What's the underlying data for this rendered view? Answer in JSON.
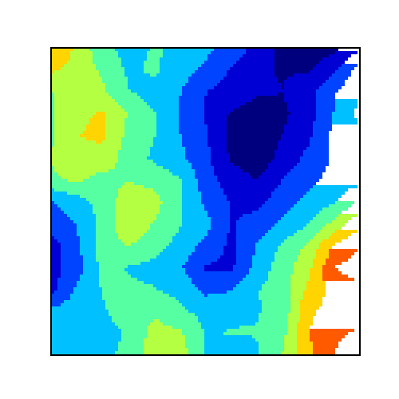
{
  "chart_data": {
    "type": "heatmap",
    "subtype": "filled-contour",
    "title": "",
    "xlabel": "",
    "ylabel": "",
    "ticks_visible": false,
    "grid": false,
    "legend": "none",
    "colormap": "jet",
    "levels": 8,
    "palette": [
      "#00007f",
      "#0000d4",
      "#0044ff",
      "#00c0ff",
      "#55ffa2",
      "#b4ff42",
      "#ffd400",
      "#ff5a00",
      "#c90000"
    ],
    "value_range": [
      0,
      8
    ],
    "z": [
      [
        6.2,
        5.2,
        3.8,
        3.3,
        3.6,
        3.5,
        2.9,
        2.3,
        1.5,
        0.6,
        0.4,
        0.6,
        1.6
      ],
      [
        5.5,
        5.0,
        4.3,
        3.4,
        3.7,
        3.1,
        2.5,
        1.7,
        1.1,
        0.8,
        0.8,
        1.6,
        3.1
      ],
      [
        4.4,
        4.7,
        4.6,
        3.6,
        3.2,
        2.7,
        1.8,
        1.4,
        1.0,
        0.9,
        1.5,
        2.6,
        3.5
      ],
      [
        4.3,
        5.2,
        5.4,
        4.4,
        3.6,
        2.6,
        1.7,
        0.8,
        0.5,
        0.7,
        1.4,
        2.7,
        3.8
      ],
      [
        4.3,
        5.3,
        5.5,
        4.2,
        3.6,
        2.7,
        1.9,
        0.6,
        0.3,
        0.9,
        1.6,
        2.9,
        3.3
      ],
      [
        4.5,
        5.0,
        5.1,
        4.0,
        3.4,
        2.9,
        2.0,
        0.8,
        0.2,
        1.2,
        2.0,
        2.8,
        3.2
      ],
      [
        4.3,
        4.6,
        4.1,
        4.4,
        4.1,
        3.6,
        2.2,
        1.3,
        0.9,
        1.8,
        2.4,
        3.0,
        3.1
      ],
      [
        2.6,
        3.2,
        3.9,
        5.0,
        4.8,
        3.6,
        2.5,
        1.7,
        1.5,
        2.3,
        2.9,
        3.4,
        4.6
      ],
      [
        2.2,
        2.7,
        3.8,
        5.2,
        4.4,
        3.6,
        3.0,
        1.7,
        2.1,
        2.8,
        3.5,
        4.7,
        6.0
      ],
      [
        1.3,
        2.5,
        4.0,
        4.5,
        3.9,
        3.3,
        2.4,
        1.6,
        2.7,
        3.7,
        4.6,
        6.3,
        7.0
      ],
      [
        1.4,
        2.3,
        3.8,
        3.5,
        3.3,
        2.8,
        1.7,
        1.6,
        3.0,
        4.0,
        5.1,
        7.1,
        7.6
      ],
      [
        1.5,
        2.8,
        3.6,
        3.7,
        3.6,
        3.3,
        2.4,
        2.6,
        3.5,
        4.0,
        5.5,
        6.6,
        6.8
      ],
      [
        2.9,
        3.1,
        3.5,
        3.8,
        4.3,
        3.7,
        3.3,
        3.4,
        3.5,
        3.9,
        6.1,
        6.5,
        6.3
      ],
      [
        3.3,
        3.4,
        3.4,
        3.6,
        4.8,
        4.6,
        3.5,
        3.6,
        3.6,
        4.2,
        6.2,
        6.9,
        7.3
      ],
      [
        3.5,
        3.1,
        3.4,
        3.7,
        5.1,
        4.9,
        3.5,
        2.8,
        3.5,
        4.5,
        6.0,
        7.1,
        8.0
      ]
    ]
  }
}
